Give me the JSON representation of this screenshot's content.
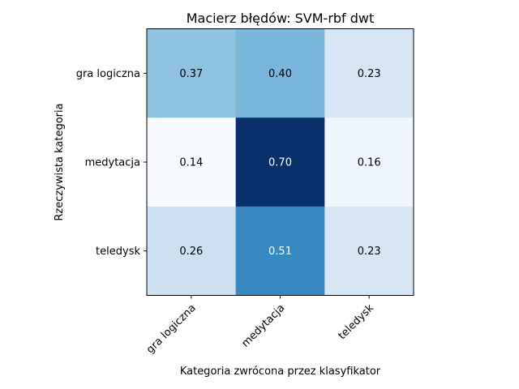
{
  "chart_data": {
    "type": "heatmap",
    "title": "Macierz błędów: SVM-rbf dwt",
    "xlabel": "Kategoria zwrócona przez klasyfikator",
    "ylabel": "Rzeczywista kategoria",
    "x_categories": [
      "gra logiczna",
      "medytacja",
      "teledysk"
    ],
    "y_categories": [
      "gra logiczna",
      "medytacja",
      "teledysk"
    ],
    "values": [
      [
        0.37,
        0.4,
        0.23
      ],
      [
        0.14,
        0.7,
        0.16
      ],
      [
        0.26,
        0.51,
        0.23
      ]
    ],
    "value_labels": [
      [
        "0.37",
        "0.40",
        "0.23"
      ],
      [
        "0.14",
        "0.70",
        "0.16"
      ],
      [
        "0.26",
        "0.51",
        "0.23"
      ]
    ],
    "colormap": "Blues",
    "vmin": 0.14,
    "vmax": 0.7,
    "grid": false
  }
}
